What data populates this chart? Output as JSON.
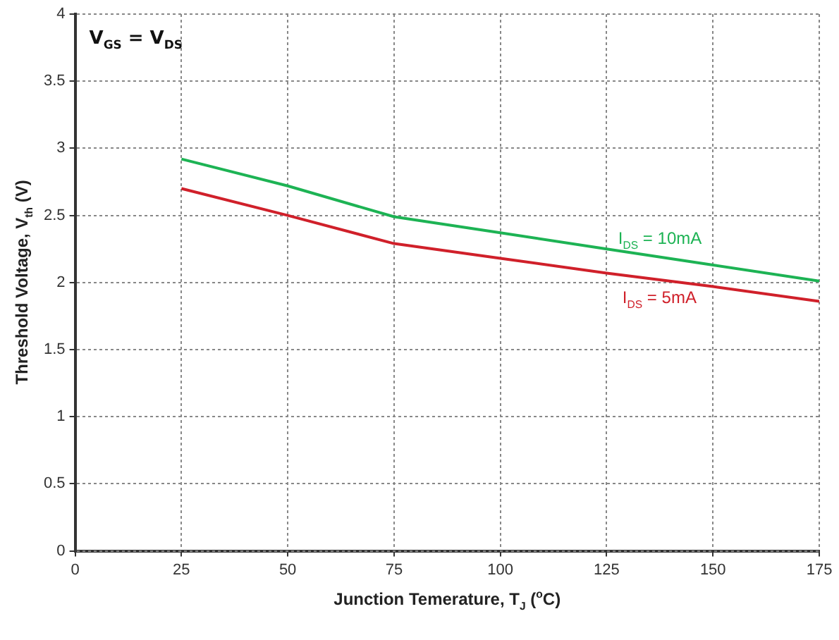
{
  "chart_data": {
    "type": "line",
    "xlabel": "Junction Temerature, T$_{J}$ ($^{o}$C)",
    "ylabel": "Threshold Voltage, V$_{th}$  (V)",
    "x": [
      25,
      50,
      75,
      100,
      125,
      150,
      175
    ],
    "series": [
      {
        "name": "I$_{DS}$ = 10mA",
        "color": "#1db354",
        "values": [
          2.92,
          2.72,
          2.49,
          2.37,
          2.25,
          2.13,
          2.01
        ]
      },
      {
        "name": "I$_{DS}$ = 5mA",
        "color": "#d0202a",
        "values": [
          2.7,
          2.5,
          2.29,
          2.18,
          2.07,
          1.97,
          1.86
        ]
      }
    ],
    "annotations": [
      "V$_{GS}$ = V$_{DS}$"
    ],
    "xlim": [
      0,
      175
    ],
    "xticks": [
      0,
      25,
      50,
      75,
      100,
      125,
      150,
      175
    ],
    "ylim": [
      0,
      4
    ],
    "yticks": [
      0,
      0.5,
      1,
      1.5,
      2,
      2.5,
      3,
      3.5,
      4
    ],
    "grid": true,
    "legend": false,
    "marker": "none",
    "line_style": "solid"
  }
}
